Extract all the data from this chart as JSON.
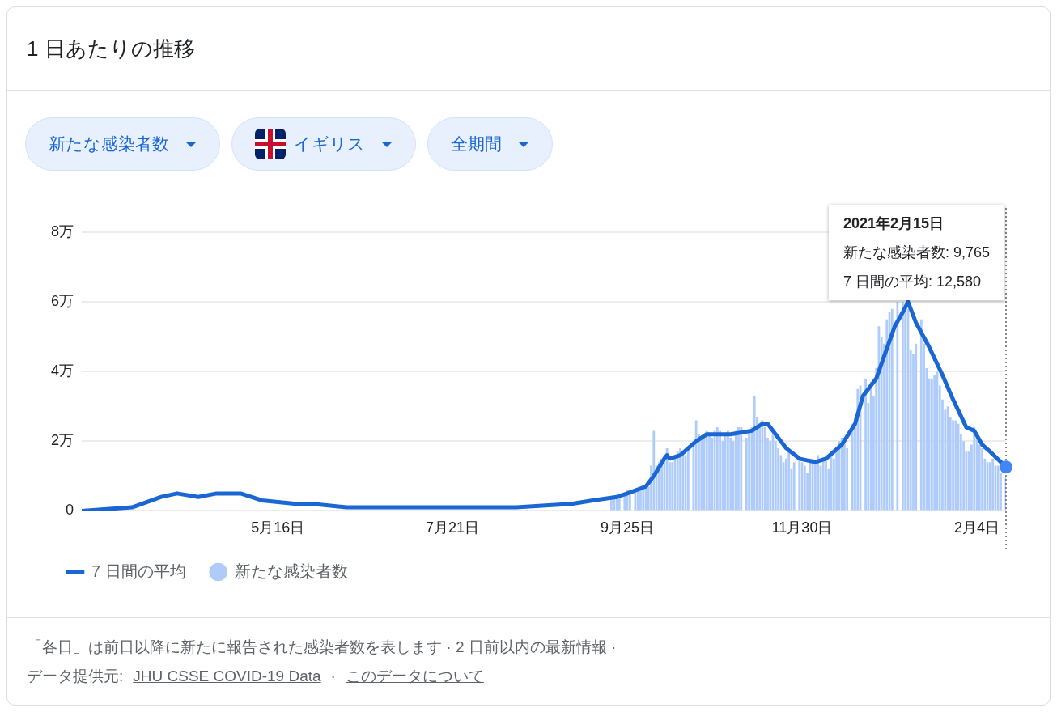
{
  "chart_data": {
    "type": "bar",
    "title": "1 日あたりの推移",
    "annotations": [
      "新たな感染者数",
      "イギリス",
      "全期間",
      "2021年2月15日",
      "新たな感染者数: 9,765",
      "7 日間の平均: 12,580",
      "「各日」は前日以降に新たに報告された感染者数を表します · 2 日前以内の最新情報 ·",
      "データ提供元:",
      "JHU CSSE COVID-19 Data",
      "·",
      "このデータについて"
    ],
    "series": [
      {
        "name": "新たな感染者数",
        "color": "#aecbfa",
        "x": [
          "2020-09-19",
          "2020-09-20",
          "2020-09-21",
          "2020-09-22",
          "2020-09-23",
          "2020-09-24",
          "2020-09-25",
          "2020-09-26",
          "2020-09-27",
          "2020-09-28",
          "2020-09-29",
          "2020-09-30",
          "2020-10-01",
          "2020-10-02",
          "2020-10-03",
          "2020-10-04",
          "2020-10-05",
          "2020-10-06",
          "2020-10-07",
          "2020-10-08",
          "2020-10-09",
          "2020-10-10",
          "2020-10-11",
          "2020-10-12",
          "2020-10-13",
          "2020-10-14",
          "2020-10-15",
          "2020-10-16",
          "2020-10-17",
          "2020-10-18",
          "2020-10-19",
          "2020-10-20",
          "2020-10-21",
          "2020-10-22",
          "2020-10-23",
          "2020-10-24",
          "2020-10-25",
          "2020-10-26",
          "2020-10-27",
          "2020-10-28",
          "2020-10-29",
          "2020-10-30",
          "2020-10-31",
          "2020-11-01",
          "2020-11-02",
          "2020-11-03",
          "2020-11-04",
          "2020-11-05",
          "2020-11-06",
          "2020-11-07",
          "2020-11-08",
          "2020-11-09",
          "2020-11-10",
          "2020-11-11",
          "2020-11-12",
          "2020-11-13",
          "2020-11-14",
          "2020-11-15",
          "2020-11-16",
          "2020-11-17",
          "2020-11-18",
          "2020-11-19",
          "2020-11-20",
          "2020-11-21",
          "2020-11-22",
          "2020-11-23",
          "2020-11-24",
          "2020-11-25",
          "2020-11-26",
          "2020-11-27",
          "2020-11-28",
          "2020-11-29",
          "2020-11-30",
          "2020-12-01",
          "2020-12-02",
          "2020-12-03",
          "2020-12-04",
          "2020-12-05",
          "2020-12-06",
          "2020-12-07",
          "2020-12-08",
          "2020-12-09",
          "2020-12-10",
          "2020-12-11",
          "2020-12-12",
          "2020-12-13",
          "2020-12-14",
          "2020-12-15",
          "2020-12-16",
          "2020-12-17",
          "2020-12-18",
          "2020-12-19",
          "2020-12-20",
          "2020-12-21",
          "2020-12-22",
          "2020-12-23",
          "2020-12-24",
          "2020-12-25",
          "2020-12-26",
          "2020-12-27",
          "2020-12-28",
          "2020-12-29",
          "2020-12-30",
          "2020-12-31",
          "2021-01-01",
          "2021-01-02",
          "2021-01-03",
          "2021-01-04",
          "2021-01-05",
          "2021-01-06",
          "2021-01-07",
          "2021-01-08",
          "2021-01-09",
          "2021-01-10",
          "2021-01-11",
          "2021-01-12",
          "2021-01-13",
          "2021-01-14",
          "2021-01-15",
          "2021-01-16",
          "2021-01-17",
          "2021-01-18",
          "2021-01-19",
          "2021-01-20",
          "2021-01-21",
          "2021-01-22",
          "2021-01-23",
          "2021-01-24",
          "2021-01-25",
          "2021-01-26",
          "2021-01-27",
          "2021-01-28",
          "2021-01-29",
          "2021-01-30",
          "2021-01-31",
          "2021-02-01",
          "2021-02-02",
          "2021-02-03",
          "2021-02-04",
          "2021-02-05",
          "2021-02-06",
          "2021-02-07",
          "2021-02-08",
          "2021-02-09",
          "2021-02-10",
          "2021-02-11",
          "2021-02-12",
          "2021-02-13",
          "2021-02-14",
          "2021-02-15"
        ],
        "values": [
          0.4,
          0.4,
          0.4,
          0.5,
          null,
          0.5,
          0.6,
          0.6,
          null,
          0.6,
          0.6,
          0.6,
          0.6,
          0.7,
          0.7,
          1.3,
          2.3,
          1.3,
          1.4,
          1.5,
          1.6,
          1.8,
          1.4,
          1.4,
          1.5,
          1.7,
          1.8,
          1.7,
          1.6,
          1.8,
          null,
          2.0,
          2.6,
          2.2,
          2.1,
          2.2,
          2.3,
          2.2,
          2.1,
          2.3,
          2.4,
          2.3,
          2.0,
          2.2,
          2.3,
          2.1,
          2.0,
          2.3,
          2.4,
          2.4,
          null,
          2.1,
          2.3,
          2.4,
          3.3,
          2.7,
          2.5,
          2.6,
          2.4,
          2.1,
          2.0,
          2.2,
          2.0,
          1.8,
          1.6,
          1.4,
          1.5,
          1.7,
          1.2,
          1.4,
          null,
          1.5,
          1.4,
          1.3,
          1.1,
          1.5,
          1.5,
          1.4,
          1.6,
          1.3,
          1.5,
          1.6,
          1.2,
          1.7,
          1.5,
          1.8,
          2.0,
          2.1,
          2.0,
          1.8,
          null,
          2.5,
          2.7,
          3.5,
          3.6,
          null,
          3.8,
          3.1,
          3.7,
          3.3,
          4.1,
          5.3,
          5.0,
          4.8,
          5.5,
          5.7,
          5.8,
          null,
          6.0,
          null,
          6.0,
          5.7,
          5.8,
          4.6,
          4.5,
          4.8,
          null,
          5.5,
          4.8,
          4.1,
          3.8,
          3.8,
          3.9,
          4.0,
          3.6,
          3.2,
          2.9,
          3.0,
          2.7,
          2.6,
          2.6,
          2.5,
          2.2,
          2.0,
          1.7,
          1.7,
          1.9,
          2.4,
          2.1,
          1.9,
          1.8,
          1.5,
          1.4,
          1.4,
          1.5,
          1.3,
          1.3,
          1.1,
          null,
          0.9765
        ]
      },
      {
        "name": "7 日間の平均",
        "type": "line",
        "color": "#1a66d2",
        "marker": "none",
        "x": [
          "2020-03-03",
          "2020-03-22",
          "2020-04-02",
          "2020-04-08",
          "2020-04-16",
          "2020-04-23",
          "2020-05-02",
          "2020-05-10",
          "2020-05-23",
          "2020-05-29",
          "2020-06-11",
          "2020-06-27",
          "2020-07-04",
          "2020-07-21",
          "2020-08-14",
          "2020-09-04",
          "2020-09-12",
          "2020-09-21",
          "2020-09-25",
          "2020-10-02",
          "2020-10-05",
          "2020-10-09",
          "2020-10-10",
          "2020-10-11",
          "2020-10-15",
          "2020-10-21",
          "2020-10-25",
          "2020-10-28",
          "2020-11-03",
          "2020-11-11",
          "2020-11-15",
          "2020-11-17",
          "2020-11-24",
          "2020-11-29",
          "2020-12-05",
          "2020-12-09",
          "2020-12-15",
          "2020-12-20",
          "2020-12-23",
          "2020-12-26",
          "2020-12-28",
          "2021-01-04",
          "2021-01-07",
          "2021-01-09",
          "2021-01-12",
          "2021-01-17",
          "2021-01-22",
          "2021-01-26",
          "2021-01-31",
          "2021-02-03",
          "2021-02-06",
          "2021-02-09",
          "2021-02-15"
        ],
        "values": [
          0,
          0.1,
          0.4,
          0.5,
          0.4,
          0.5,
          0.5,
          0.3,
          0.2,
          0.2,
          0.1,
          0.1,
          0.1,
          0.1,
          0.1,
          0.2,
          0.3,
          0.4,
          0.5,
          0.7,
          1.0,
          1.5,
          1.6,
          1.5,
          1.6,
          2.0,
          2.2,
          2.2,
          2.2,
          2.3,
          2.5,
          2.5,
          1.8,
          1.5,
          1.4,
          1.5,
          1.9,
          2.5,
          3.3,
          3.6,
          3.8,
          5.3,
          5.7,
          6.0,
          5.4,
          4.7,
          3.9,
          3.2,
          2.4,
          2.3,
          1.9,
          1.7,
          1.258
        ]
      }
    ],
    "xlim": [
      "2020-03-03",
      "2021-02-15"
    ],
    "xticks": [
      {
        "value": "2020-05-16",
        "label": "5月16日"
      },
      {
        "value": "2020-07-21",
        "label": "7月21日"
      },
      {
        "value": "2020-09-25",
        "label": "9月25日"
      },
      {
        "value": "2020-11-30",
        "label": "11月30日"
      },
      {
        "value": "2021-02-04",
        "label": "2月4日"
      }
    ],
    "ylim": [
      0,
      8
    ],
    "yticks": [
      0,
      {
        "value": 2,
        "label": "2万"
      },
      {
        "value": 4,
        "label": "4万"
      },
      {
        "value": 6,
        "label": "6万"
      },
      {
        "value": 8,
        "label": "8万"
      }
    ],
    "ref_lines": [
      {
        "axis": "x",
        "value": "2021-02-15",
        "line_style": "dotted",
        "color": "#5f6368"
      }
    ],
    "grid": "y",
    "legend": "bottom left"
  }
}
